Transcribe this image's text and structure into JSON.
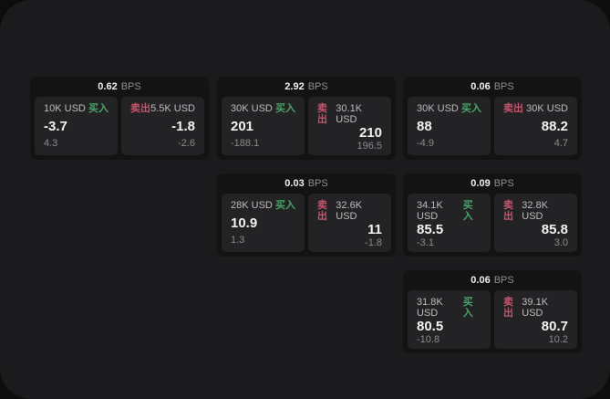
{
  "labels": {
    "buy": "买入",
    "sell": "卖出",
    "bps_unit": "BPS"
  },
  "colors": {
    "panel_bg": "#1b1b1d",
    "card_bg": "#131314",
    "tile_bg": "#232325",
    "buy_green": "#44a767",
    "sell_red": "#c9536b",
    "text_primary": "#f2f2f2",
    "text_secondary": "#bcbcbe",
    "text_dim": "#8b8b8d"
  },
  "cards": [
    {
      "bps": "0.62",
      "unit": "BPS",
      "buy": {
        "amount": "10K USD",
        "label": "买入",
        "price": "-3.7",
        "delta": "4.3"
      },
      "sell": {
        "amount": "5.5K USD",
        "label": "卖出",
        "price": "-1.8",
        "delta": "-2.6"
      }
    },
    {
      "bps": "2.92",
      "unit": "BPS",
      "buy": {
        "amount": "30K USD",
        "label": "买入",
        "price": "201",
        "delta": "-188.1"
      },
      "sell": {
        "amount": "30.1K USD",
        "label": "卖出",
        "price": "210",
        "delta": "196.5"
      }
    },
    {
      "bps": "0.06",
      "unit": "BPS",
      "buy": {
        "amount": "30K USD",
        "label": "买入",
        "price": "88",
        "delta": "-4.9"
      },
      "sell": {
        "amount": "30K USD",
        "label": "卖出",
        "price": "88.2",
        "delta": "4.7"
      }
    },
    {
      "bps": "0.03",
      "unit": "BPS",
      "buy": {
        "amount": "28K USD",
        "label": "买入",
        "price": "10.9",
        "delta": "1.3"
      },
      "sell": {
        "amount": "32.6K USD",
        "label": "卖出",
        "price": "11",
        "delta": "-1.8"
      }
    },
    {
      "bps": "0.09",
      "unit": "BPS",
      "buy": {
        "amount": "34.1K USD",
        "label": "买入",
        "price": "85.5",
        "delta": "-3.1"
      },
      "sell": {
        "amount": "32.8K USD",
        "label": "卖出",
        "price": "85.8",
        "delta": "3.0"
      }
    },
    {
      "bps": "0.06",
      "unit": "BPS",
      "buy": {
        "amount": "31.8K USD",
        "label": "买入",
        "price": "80.5",
        "delta": "-10.8"
      },
      "sell": {
        "amount": "39.1K USD",
        "label": "卖出",
        "price": "80.7",
        "delta": "10.2"
      }
    }
  ]
}
